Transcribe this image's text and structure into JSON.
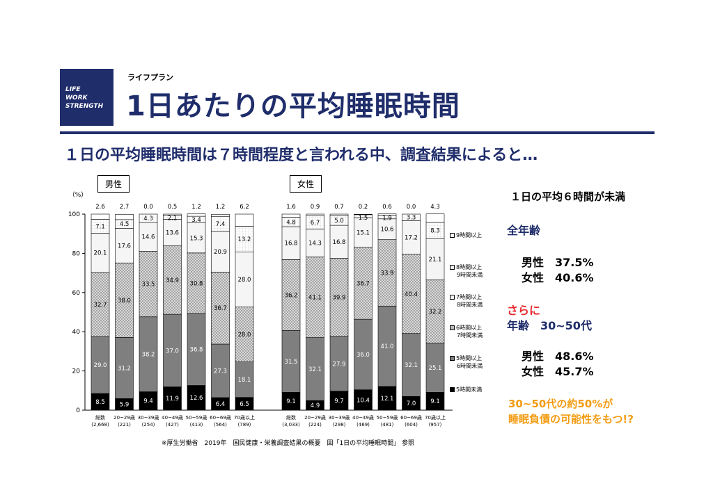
{
  "header": {
    "logo_lines": [
      "LIFE",
      "WORK",
      "STRENGTH"
    ],
    "kicker": "ライフプラン",
    "title": "1日あたりの平均睡眠時間",
    "subtitle": "１日の平均睡眠時間は７時間程度と言われる中、調査結果によると…"
  },
  "colors": {
    "brand_navy": "#1f2d6b",
    "accent_red": "#e8262d",
    "accent_orange": "#f39c12",
    "lt5": "#000000",
    "h5_6": "#7f7f7f",
    "h6_7": "#d9d9d9",
    "h7_8": "#f5f5f5",
    "h8_9": "#ffffff",
    "h9plus": "#ffffff"
  },
  "chart_data": {
    "type": "bar",
    "stacked": true,
    "ylabel": "（%）",
    "ylim": [
      0,
      100
    ],
    "yticks": [
      0,
      20,
      40,
      60,
      80,
      100
    ],
    "legend_position": "right",
    "series_names": [
      "9時間以上",
      "8時間以上 9時間未満",
      "7時間以上 8時間未満",
      "6時間以上 7時間未満",
      "5時間以上 6時間未満",
      "5時間未満"
    ],
    "groups": [
      {
        "label": "男性",
        "categories": [
          "総数",
          "20~29歳",
          "30~39歳",
          "40~49歳",
          "50~59歳",
          "60~69歳",
          "70歳以上"
        ],
        "counts": [
          "(2,668)",
          "(221)",
          "(254)",
          "(427)",
          "(413)",
          "(564)",
          "(789)"
        ],
        "values": {
          "lt5": [
            8.5,
            5.9,
            9.4,
            11.9,
            12.6,
            6.4,
            6.5
          ],
          "h5_6": [
            29.0,
            31.2,
            38.2,
            37.0,
            36.8,
            27.3,
            18.1
          ],
          "h6_7": [
            32.7,
            38.0,
            33.5,
            34.9,
            30.8,
            36.7,
            28.0
          ],
          "h7_8": [
            20.1,
            17.6,
            14.6,
            13.6,
            15.3,
            20.9,
            28.0
          ],
          "h8_9": [
            7.1,
            4.5,
            4.3,
            2.1,
            3.4,
            7.4,
            13.2
          ],
          "h9plus": [
            2.6,
            2.7,
            0.0,
            0.5,
            1.2,
            1.2,
            6.2
          ]
        }
      },
      {
        "label": "女性",
        "categories": [
          "総数",
          "20~29歳",
          "30~39歳",
          "40~49歳",
          "50~59歳",
          "60~69歳",
          "70歳以上"
        ],
        "counts": [
          "(3,033)",
          "(224)",
          "(298)",
          "(469)",
          "(481)",
          "(604)",
          "(957)"
        ],
        "values": {
          "lt5": [
            9.1,
            4.9,
            9.7,
            10.4,
            12.1,
            7.0,
            9.1
          ],
          "h5_6": [
            31.5,
            32.1,
            27.9,
            36.0,
            41.0,
            32.1,
            25.1
          ],
          "h6_7": [
            36.2,
            41.1,
            39.9,
            36.7,
            33.9,
            40.4,
            32.2
          ],
          "h7_8": [
            16.8,
            14.3,
            16.8,
            15.1,
            10.6,
            17.2,
            21.1
          ],
          "h8_9": [
            4.8,
            6.7,
            5.0,
            1.5,
            1.9,
            3.3,
            8.3
          ],
          "h9plus": [
            1.6,
            0.9,
            0.7,
            0.2,
            0.6,
            0.0,
            4.3
          ]
        }
      }
    ],
    "source": "※厚生労働省　2019年　国民健康・栄養調査結果の概要　図「1日の平均睡眠時間」 参照"
  },
  "sidebar": {
    "heading": "１日の平均６時間が未満",
    "all_ages_label": "全年齢",
    "all_ages_male": "男性　37.5%",
    "all_ages_female": "女性　40.6%",
    "more_label": "さらに",
    "age_label": "年齢　30~50代",
    "age_male": "男性　48.6%",
    "age_female": "女性　45.7%",
    "conclusion_line1": "30~50代の約50%が",
    "conclusion_line2": "睡眠負債の可能性をもつ!?"
  }
}
